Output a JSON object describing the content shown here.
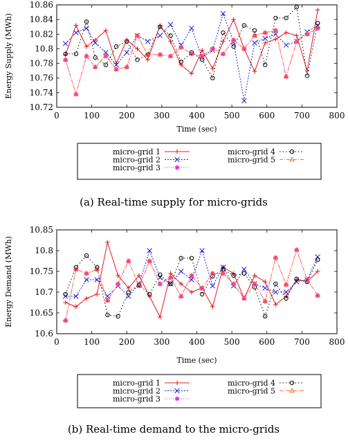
{
  "colors": {
    "micro-grid 1": "#e8191c",
    "micro-grid 2": "#1f1fe0",
    "micro-grid 3": "#e61ee6",
    "micro-grid 4": "#000000",
    "micro-grid 5": "#ff6a2a"
  },
  "chart_data": [
    {
      "type": "line",
      "caption": "(a) Real-time supply for micro-grids",
      "xlabel": "Time (sec)",
      "ylabel": "Energy Supply (MWh)",
      "xlim": [
        0,
        800
      ],
      "ylim": [
        10.72,
        10.86
      ],
      "xticks": [
        "0",
        "100",
        "200",
        "300",
        "400",
        "500",
        "600",
        "700",
        "800"
      ],
      "yticks": [
        "10.72",
        "10.74",
        "10.76",
        "10.78",
        "10.8",
        "10.82",
        "10.84",
        "10.86"
      ],
      "legend": [
        "micro-grid 1",
        "micro-grid 2",
        "micro-grid 3",
        "micro-grid 4",
        "micro-grid 5"
      ],
      "x": [
        25,
        55,
        85,
        110,
        140,
        170,
        200,
        230,
        260,
        295,
        325,
        355,
        385,
        415,
        445,
        475,
        505,
        535,
        565,
        595,
        625,
        655,
        685,
        715,
        745
      ],
      "series": [
        {
          "name": "micro-grid 1",
          "marker": "+",
          "values": [
            10.792,
            10.832,
            10.803,
            10.812,
            10.825,
            10.78,
            10.812,
            10.8,
            10.785,
            10.832,
            10.81,
            10.778,
            10.766,
            10.798,
            10.773,
            10.81,
            10.84,
            10.8,
            10.769,
            10.808,
            10.813,
            10.822,
            10.818,
            10.77,
            10.853
          ]
        },
        {
          "name": "micro-grid 2",
          "marker": "x",
          "values": [
            10.807,
            10.822,
            10.828,
            10.808,
            10.795,
            10.778,
            10.795,
            10.818,
            10.81,
            10.818,
            10.833,
            10.805,
            10.828,
            10.788,
            10.798,
            10.848,
            10.809,
            10.729,
            10.808,
            10.814,
            10.82,
            10.805,
            10.81,
            10.823,
            10.832
          ]
        },
        {
          "name": "micro-grid 3",
          "marker": "*",
          "values": [
            10.785,
            10.738,
            10.79,
            10.775,
            10.79,
            10.772,
            10.775,
            10.818,
            10.792,
            10.792,
            10.79,
            10.802,
            10.793,
            10.79,
            10.8,
            10.793,
            10.812,
            10.8,
            10.818,
            10.822,
            10.825,
            10.762,
            10.81,
            10.82,
            10.828
          ]
        },
        {
          "name": "micro-grid 4",
          "marker": "o",
          "values": [
            10.793,
            10.793,
            10.837,
            10.788,
            10.778,
            10.803,
            10.81,
            10.785,
            10.792,
            10.83,
            10.818,
            10.782,
            10.795,
            10.785,
            10.76,
            10.822,
            10.803,
            10.832,
            10.825,
            10.778,
            10.842,
            10.842,
            10.857,
            10.763,
            10.835
          ]
        },
        {
          "name": "micro-grid 5",
          "marker": "triangle",
          "values": [
            10.785,
            10.738,
            10.79,
            10.775,
            10.79,
            10.772,
            10.775,
            10.818,
            10.792,
            10.792,
            10.79,
            10.802,
            10.793,
            10.79,
            10.8,
            10.793,
            10.812,
            10.8,
            10.818,
            10.822,
            10.825,
            10.762,
            10.81,
            10.82,
            10.828
          ]
        }
      ]
    },
    {
      "type": "line",
      "caption": "(b) Real-time demand to the micro-grids",
      "xlabel": "Time (sec)",
      "ylabel": "Energy Demand (MWh)",
      "xlim": [
        0,
        800
      ],
      "ylim": [
        10.6,
        10.85
      ],
      "xticks": [
        "0",
        "100",
        "200",
        "300",
        "400",
        "500",
        "600",
        "700",
        "800"
      ],
      "yticks": [
        "10.6",
        "10.65",
        "10.7",
        "10.75",
        "10.8",
        "10.85"
      ],
      "legend": [
        "micro-grid 1",
        "micro-grid 2",
        "micro-grid 3",
        "micro-grid 4",
        "micro-grid 5"
      ],
      "x": [
        25,
        55,
        85,
        115,
        145,
        175,
        205,
        235,
        265,
        295,
        325,
        355,
        385,
        415,
        445,
        475,
        505,
        535,
        565,
        595,
        625,
        655,
        685,
        715,
        745
      ],
      "series": [
        {
          "name": "micro-grid 1",
          "marker": "+",
          "values": [
            10.675,
            10.665,
            10.685,
            10.695,
            10.82,
            10.74,
            10.71,
            10.74,
            10.69,
            10.64,
            10.745,
            10.72,
            10.7,
            10.71,
            10.665,
            10.76,
            10.745,
            10.685,
            10.74,
            10.725,
            10.67,
            10.69,
            10.73,
            10.725,
            10.75
          ]
        },
        {
          "name": "micro-grid 2",
          "marker": "x",
          "values": [
            10.69,
            10.69,
            10.73,
            10.73,
            10.69,
            10.715,
            10.69,
            10.72,
            10.8,
            10.735,
            10.72,
            10.75,
            10.73,
            10.8,
            10.715,
            10.76,
            10.715,
            10.755,
            10.72,
            10.71,
            10.7,
            10.7,
            10.725,
            10.73,
            10.785
          ]
        },
        {
          "name": "micro-grid 3",
          "marker": "*",
          "values": [
            10.632,
            10.755,
            10.745,
            10.755,
            10.68,
            10.72,
            10.775,
            10.715,
            10.775,
            10.72,
            10.735,
            10.69,
            10.74,
            10.71,
            10.745,
            10.745,
            10.72,
            10.685,
            10.72,
            10.678,
            10.783,
            10.718,
            10.802,
            10.73,
            10.692
          ]
        },
        {
          "name": "micro-grid 4",
          "marker": "o",
          "values": [
            10.695,
            10.76,
            10.788,
            10.76,
            10.645,
            10.642,
            10.7,
            10.718,
            10.695,
            10.742,
            10.72,
            10.782,
            10.782,
            10.695,
            10.738,
            10.755,
            10.74,
            10.745,
            10.712,
            10.642,
            10.72,
            10.685,
            10.732,
            10.725,
            10.778
          ]
        },
        {
          "name": "micro-grid 5",
          "marker": "triangle",
          "values": [
            10.632,
            10.755,
            10.745,
            10.755,
            10.68,
            10.72,
            10.775,
            10.715,
            10.775,
            10.72,
            10.735,
            10.69,
            10.74,
            10.71,
            10.745,
            10.745,
            10.72,
            10.685,
            10.72,
            10.678,
            10.783,
            10.718,
            10.802,
            10.73,
            10.692
          ]
        }
      ]
    }
  ]
}
